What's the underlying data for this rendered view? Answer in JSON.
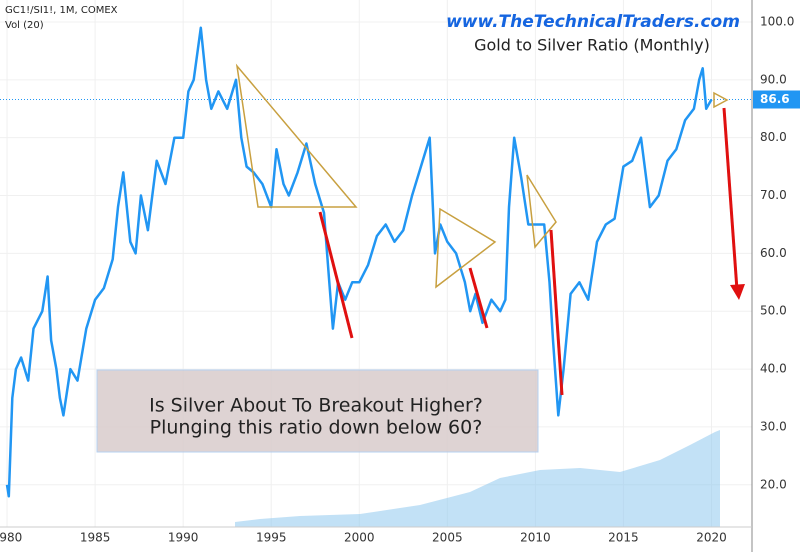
{
  "header": {
    "symbol": "GC1!/SI1!, 1M, COMEX",
    "volume": "Vol (20)",
    "watermark": "www.TheTechnicalTraders.com"
  },
  "annotation": {
    "line1": "Is Silver About To Breakout Higher?",
    "line2": "Plunging this ratio down below 60?"
  },
  "chart_data": {
    "type": "line",
    "title": "Gold to Silver Ratio (Monthly)",
    "x": [
      1980.0,
      1980.1,
      1980.3,
      1980.5,
      1980.8,
      1981.2,
      1981.5,
      1982.0,
      1982.3,
      1982.5,
      1982.8,
      1983.0,
      1983.2,
      1983.6,
      1984.0,
      1984.5,
      1985.0,
      1985.5,
      1986.0,
      1986.3,
      1986.6,
      1987.0,
      1987.3,
      1987.6,
      1988.0,
      1988.5,
      1989.0,
      1989.5,
      1990.0,
      1990.3,
      1990.6,
      1991.0,
      1991.3,
      1991.6,
      1992.0,
      1992.5,
      1993.0,
      1993.3,
      1993.6,
      1994.0,
      1994.5,
      1995.0,
      1995.3,
      1995.7,
      1996.0,
      1996.5,
      1997.0,
      1997.5,
      1998.0,
      1998.3,
      1998.5,
      1998.8,
      1999.2,
      1999.6,
      2000.0,
      2000.5,
      2001.0,
      2001.5,
      2002.0,
      2002.5,
      2003.0,
      2003.5,
      2004.0,
      2004.3,
      2004.6,
      2005.0,
      2005.5,
      2006.0,
      2006.3,
      2006.6,
      2007.0,
      2007.5,
      2008.0,
      2008.3,
      2008.5,
      2008.8,
      2009.2,
      2009.6,
      2010.0,
      2010.5,
      2010.8,
      2011.0,
      2011.3,
      2011.6,
      2012.0,
      2012.5,
      2013.0,
      2013.5,
      2014.0,
      2014.5,
      2015.0,
      2015.5,
      2016.0,
      2016.5,
      2017.0,
      2017.5,
      2018.0,
      2018.5,
      2019.0,
      2019.3,
      2019.5,
      2019.7,
      2020.0
    ],
    "series": [
      {
        "name": "GC1!/SI1!",
        "color": "#2196f3",
        "values": [
          20,
          18,
          35,
          40,
          42,
          38,
          47,
          50,
          56,
          45,
          40,
          35,
          32,
          40,
          38,
          47,
          52,
          54,
          59,
          68,
          74,
          62,
          60,
          70,
          64,
          76,
          72,
          80,
          80,
          88,
          90,
          99,
          90,
          85,
          88,
          85,
          90,
          80,
          75,
          74,
          72,
          68,
          78,
          72,
          70,
          74,
          79,
          72,
          67,
          55,
          47,
          55,
          52,
          55,
          55,
          58,
          63,
          65,
          62,
          64,
          70,
          75,
          80,
          60,
          65,
          62,
          60,
          55,
          50,
          53,
          48,
          52,
          50,
          52,
          68,
          80,
          73,
          65,
          65,
          65,
          55,
          45,
          32,
          40,
          53,
          55,
          52,
          62,
          65,
          66,
          75,
          76,
          80,
          68,
          70,
          76,
          78,
          83,
          85,
          90,
          92,
          85,
          86.6
        ]
      }
    ],
    "xlim": [
      1979.6,
      2022.3
    ],
    "xticks": [
      1980,
      1985,
      1990,
      1995,
      2000,
      2005,
      2010,
      2015,
      2020
    ],
    "ylim": [
      12.7,
      103.8
    ],
    "yticks": [
      {
        "value": 20,
        "label": "20.0"
      },
      {
        "value": 30,
        "label": "30.0"
      },
      {
        "value": 40,
        "label": "40.0"
      },
      {
        "value": 50,
        "label": "50.0"
      },
      {
        "value": 60,
        "label": "60.0"
      },
      {
        "value": 70,
        "label": "70.0"
      },
      {
        "value": 80,
        "label": "80.0"
      },
      {
        "value": 90,
        "label": "90.0"
      },
      {
        "value": 100,
        "label": "100.0"
      }
    ]
  }
}
